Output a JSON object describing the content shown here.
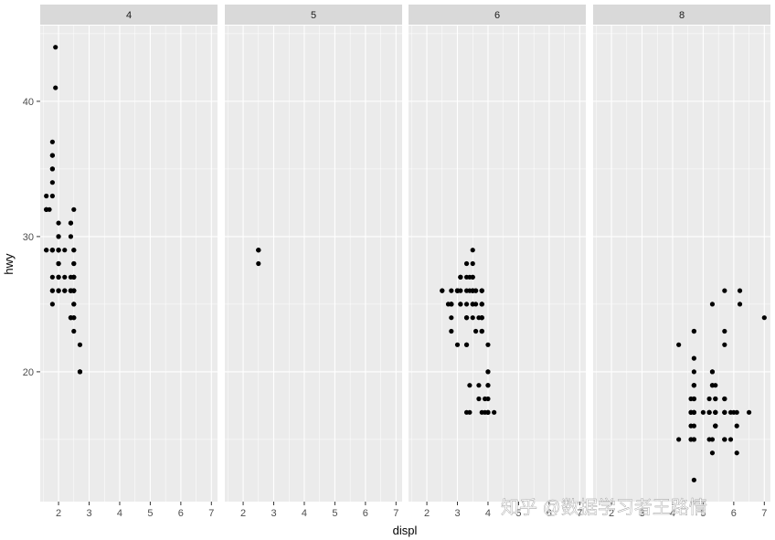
{
  "chart_data": {
    "type": "scatter",
    "facet_variable": "cyl",
    "facets": [
      {
        "label": "4",
        "points": [
          [
            1.8,
            29
          ],
          [
            1.8,
            29
          ],
          [
            2.0,
            31
          ],
          [
            2.0,
            30
          ],
          [
            1.8,
            26
          ],
          [
            1.8,
            25
          ],
          [
            2.0,
            28
          ],
          [
            2.0,
            27
          ],
          [
            2.4,
            27
          ],
          [
            2.4,
            30
          ],
          [
            2.4,
            26
          ],
          [
            2.5,
            29
          ],
          [
            2.5,
            26
          ],
          [
            2.5,
            26
          ],
          [
            1.6,
            33
          ],
          [
            1.6,
            32
          ],
          [
            1.6,
            32
          ],
          [
            1.6,
            29
          ],
          [
            1.6,
            32
          ],
          [
            1.8,
            34
          ],
          [
            1.8,
            36
          ],
          [
            1.8,
            36
          ],
          [
            1.8,
            29
          ],
          [
            1.8,
            26
          ],
          [
            1.8,
            27
          ],
          [
            2.0,
            30
          ],
          [
            2.4,
            31
          ],
          [
            2.4,
            26
          ],
          [
            2.4,
            26
          ],
          [
            2.5,
            28
          ],
          [
            2.5,
            26
          ],
          [
            2.5,
            29
          ],
          [
            2.5,
            28
          ],
          [
            2.7,
            20
          ],
          [
            2.7,
            20
          ],
          [
            2.0,
            29
          ],
          [
            2.0,
            29
          ],
          [
            2.0,
            28
          ],
          [
            2.0,
            29
          ],
          [
            1.9,
            44
          ],
          [
            2.0,
            26
          ],
          [
            2.0,
            29
          ],
          [
            2.0,
            26
          ],
          [
            2.5,
            24
          ],
          [
            2.5,
            24
          ],
          [
            2.5,
            27
          ],
          [
            2.5,
            23
          ],
          [
            2.5,
            25
          ],
          [
            2.5,
            25
          ],
          [
            2.5,
            27
          ],
          [
            2.5,
            27
          ],
          [
            2.2,
            26
          ],
          [
            2.2,
            29
          ],
          [
            2.4,
            31
          ],
          [
            2.5,
            32
          ],
          [
            2.5,
            27
          ],
          [
            2.5,
            26
          ],
          [
            2.7,
            22
          ],
          [
            1.8,
            37
          ],
          [
            1.8,
            35
          ],
          [
            1.9,
            41
          ],
          [
            2.0,
            26
          ],
          [
            2.0,
            29
          ],
          [
            2.2,
            27
          ],
          [
            2.2,
            26
          ],
          [
            2.4,
            24
          ],
          [
            2.4,
            24
          ],
          [
            1.8,
            29
          ],
          [
            2.0,
            26
          ],
          [
            2.0,
            27
          ],
          [
            2.4,
            24
          ],
          [
            2.0,
            28
          ],
          [
            2.0,
            27
          ],
          [
            2.4,
            26
          ],
          [
            2.7,
            20
          ],
          [
            1.8,
            33
          ],
          [
            1.8,
            35
          ],
          [
            1.6,
            29
          ],
          [
            1.7,
            32
          ]
        ]
      },
      {
        "label": "5",
        "points": [
          [
            2.5,
            29
          ],
          [
            2.5,
            29
          ],
          [
            2.5,
            28
          ],
          [
            2.5,
            29
          ]
        ]
      },
      {
        "label": "6",
        "points": [
          [
            2.8,
            26
          ],
          [
            2.8,
            25
          ],
          [
            3.1,
            27
          ],
          [
            2.8,
            25
          ],
          [
            2.8,
            25
          ],
          [
            3.1,
            25
          ],
          [
            3.1,
            25
          ],
          [
            3.6,
            25
          ],
          [
            3.8,
            26
          ],
          [
            3.8,
            25
          ],
          [
            3.8,
            25
          ],
          [
            3.8,
            24
          ],
          [
            3.8,
            24
          ],
          [
            3.8,
            23
          ],
          [
            3.1,
            27
          ],
          [
            3.5,
            26
          ],
          [
            3.3,
            22
          ],
          [
            3.3,
            22
          ],
          [
            3.3,
            24
          ],
          [
            3.3,
            24
          ],
          [
            3.8,
            23
          ],
          [
            3.8,
            23
          ],
          [
            3.8,
            17
          ],
          [
            4.0,
            17
          ],
          [
            4.0,
            17
          ],
          [
            4.0,
            17
          ],
          [
            4.0,
            19
          ],
          [
            3.7,
            19
          ],
          [
            3.7,
            18
          ],
          [
            3.9,
            18
          ],
          [
            3.9,
            17
          ],
          [
            4.0,
            20
          ],
          [
            4.0,
            18
          ],
          [
            4.0,
            20
          ],
          [
            4.0,
            22
          ],
          [
            4.2,
            17
          ],
          [
            3.5,
            25
          ],
          [
            3.5,
            26
          ],
          [
            3.5,
            28
          ],
          [
            3.5,
            25
          ],
          [
            3.0,
            26
          ],
          [
            3.0,
            26
          ],
          [
            3.0,
            26
          ],
          [
            2.5,
            26
          ],
          [
            2.7,
            25
          ],
          [
            3.5,
            27
          ],
          [
            3.3,
            27
          ],
          [
            3.3,
            26
          ],
          [
            3.5,
            29
          ],
          [
            3.6,
            26
          ],
          [
            3.3,
            24
          ],
          [
            3.4,
            17
          ],
          [
            3.4,
            19
          ],
          [
            3.3,
            17
          ],
          [
            2.5,
            26
          ],
          [
            3.0,
            26
          ],
          [
            3.0,
            26
          ],
          [
            3.3,
            28
          ],
          [
            2.8,
            23
          ],
          [
            2.8,
            24
          ],
          [
            3.1,
            26
          ],
          [
            3.5,
            26
          ],
          [
            3.6,
            26
          ],
          [
            3.1,
            27
          ],
          [
            3.5,
            27
          ],
          [
            3.4,
            26
          ],
          [
            3.3,
            25
          ],
          [
            3.8,
            25
          ],
          [
            3.8,
            26
          ],
          [
            3.8,
            24
          ],
          [
            2.8,
            25
          ],
          [
            3.6,
            23
          ],
          [
            3.0,
            22
          ],
          [
            3.4,
            27
          ],
          [
            3.5,
            24
          ],
          [
            3.8,
            26
          ],
          [
            4.0,
            19
          ],
          [
            3.7,
            24
          ],
          [
            3.0,
            26
          ]
        ]
      },
      {
        "label": "8",
        "points": [
          [
            5.3,
            20
          ],
          [
            5.3,
            15
          ],
          [
            5.3,
            20
          ],
          [
            5.7,
            17
          ],
          [
            6.0,
            17
          ],
          [
            5.7,
            26
          ],
          [
            5.7,
            23
          ],
          [
            6.2,
            26
          ],
          [
            6.2,
            25
          ],
          [
            7.0,
            24
          ],
          [
            5.3,
            19
          ],
          [
            5.3,
            14
          ],
          [
            5.7,
            15
          ],
          [
            6.5,
            17
          ],
          [
            5.2,
            17
          ],
          [
            5.2,
            17
          ],
          [
            4.7,
            18
          ],
          [
            4.7,
            17
          ],
          [
            5.2,
            15
          ],
          [
            5.2,
            18
          ],
          [
            5.7,
            15
          ],
          [
            5.9,
            15
          ],
          [
            4.7,
            17
          ],
          [
            4.7,
            19
          ],
          [
            4.7,
            19
          ],
          [
            5.2,
            17
          ],
          [
            5.9,
            17
          ],
          [
            4.7,
            18
          ],
          [
            4.7,
            12
          ],
          [
            5.7,
            18
          ],
          [
            6.1,
            17
          ],
          [
            5.3,
            19
          ],
          [
            5.4,
            17
          ],
          [
            5.4,
            16
          ],
          [
            5.4,
            18
          ],
          [
            4.6,
            18
          ],
          [
            5.4,
            17
          ],
          [
            5.4,
            16
          ],
          [
            4.6,
            15
          ],
          [
            5.4,
            17
          ],
          [
            5.4,
            16
          ],
          [
            5.7,
            15
          ],
          [
            4.6,
            17
          ],
          [
            5.4,
            19
          ],
          [
            5.4,
            16
          ],
          [
            4.6,
            17
          ],
          [
            5.0,
            17
          ],
          [
            4.2,
            22
          ],
          [
            4.6,
            16
          ],
          [
            4.6,
            17
          ],
          [
            4.6,
            15
          ],
          [
            5.4,
            17
          ],
          [
            4.7,
            21
          ],
          [
            4.7,
            23
          ],
          [
            4.7,
            15
          ],
          [
            5.7,
            17
          ],
          [
            6.1,
            14
          ],
          [
            5.4,
            18
          ],
          [
            4.7,
            19
          ],
          [
            4.7,
            16
          ],
          [
            5.7,
            17
          ],
          [
            6.1,
            16
          ],
          [
            4.7,
            15
          ],
          [
            4.2,
            15
          ],
          [
            4.7,
            20
          ],
          [
            4.7,
            23
          ],
          [
            4.7,
            17
          ],
          [
            5.7,
            18
          ],
          [
            5.7,
            22
          ],
          [
            5.3,
            25
          ]
        ]
      }
    ],
    "xlabel": "displ",
    "ylabel": "hwy",
    "xlim": [
      1.4,
      7.2
    ],
    "ylim": [
      10.4,
      45.6
    ],
    "x_ticks": [
      2,
      3,
      4,
      5,
      6,
      7
    ],
    "y_ticks": [
      20,
      30,
      40
    ],
    "colors": {
      "panel_background": "#ebebeb",
      "strip_background": "#d9d9d9",
      "grid_major": "#ffffff",
      "point": "#000000"
    }
  },
  "watermark": "知乎 @数据学习者王路情"
}
